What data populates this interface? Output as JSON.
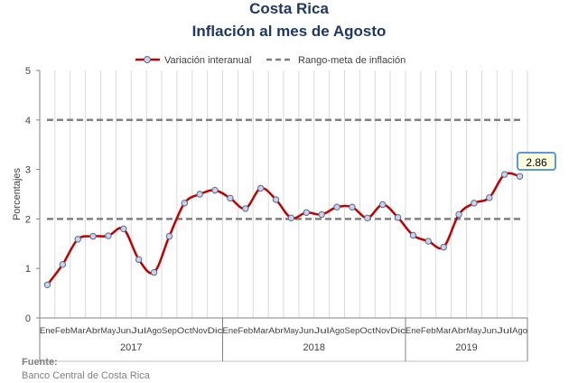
{
  "header": {
    "country": "Costa Rica",
    "title": "Inflación al mes de Agosto"
  },
  "legend": {
    "series_label": "Variación interanual",
    "band_label": "Rango-meta de inflación"
  },
  "callout": {
    "value_label": "2.86"
  },
  "source": {
    "label": "Fuente:",
    "text": "Banco Central de Costa Rica"
  },
  "colors": {
    "series": "#c00000",
    "band": "#808080",
    "marker_fill": "#c9d3ee",
    "marker_stroke": "#5a6a8a",
    "title": "#1f3864"
  },
  "chart_data": {
    "type": "line",
    "title": "Inflación al mes de Agosto",
    "ylabel": "Porcentajes",
    "xlabel": "",
    "ylim": [
      0,
      5
    ],
    "yticks": [
      0,
      1,
      2,
      3,
      4,
      5
    ],
    "grid": true,
    "legend_position": "top",
    "categories": [
      "Ene",
      "Feb",
      "Mar",
      "Abr",
      "May",
      "Jun",
      "Jul",
      "Ago",
      "Sep",
      "Oct",
      "Nov",
      "Dic",
      "Ene",
      "Feb",
      "Mar",
      "Abr",
      "May",
      "Jun",
      "Jul",
      "Ago",
      "Sep",
      "Oct",
      "Nov",
      "Dic",
      "Ene",
      "Feb",
      "Mar",
      "Abr",
      "May",
      "Jun",
      "Jul",
      "Ago"
    ],
    "groups": [
      {
        "label": "2017",
        "count": 12
      },
      {
        "label": "2018",
        "count": 12
      },
      {
        "label": "2019",
        "count": 8
      }
    ],
    "series": [
      {
        "name": "Variación interanual",
        "values": [
          0.67,
          1.08,
          1.59,
          1.65,
          1.66,
          1.8,
          1.18,
          0.92,
          1.65,
          2.32,
          2.5,
          2.58,
          2.42,
          2.21,
          2.62,
          2.39,
          2.02,
          2.13,
          2.09,
          2.24,
          2.24,
          2.02,
          2.29,
          2.03,
          1.67,
          1.55,
          1.43,
          2.09,
          2.32,
          2.43,
          2.9,
          2.86
        ]
      }
    ],
    "target_band": {
      "name": "Rango-meta de inflación",
      "lower": 2,
      "upper": 4
    }
  }
}
